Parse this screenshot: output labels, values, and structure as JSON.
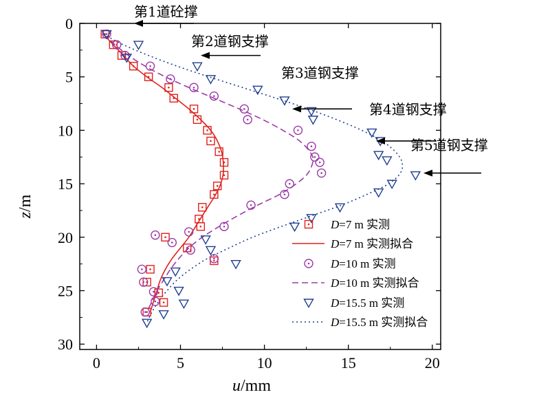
{
  "chart_data": {
    "type": "scatter",
    "title": "",
    "xlabel": {
      "var": "u",
      "unit": "/mm"
    },
    "ylabel": {
      "var": "z",
      "unit": "/m"
    },
    "xlim": [
      -1,
      20.5
    ],
    "ylim": [
      30.5,
      0
    ],
    "x_ticks": [
      0,
      5,
      10,
      15,
      20
    ],
    "y_ticks": [
      0,
      5,
      10,
      15,
      20,
      25,
      30
    ],
    "grid": false,
    "legend_position": "bottom-right",
    "series": [
      {
        "name": "D=7 m 实测",
        "kind": "measured",
        "marker": "square",
        "color": "#e0201b",
        "points": [
          [
            0.5,
            1
          ],
          [
            1,
            2
          ],
          [
            1.5,
            3
          ],
          [
            2.2,
            4
          ],
          [
            3.1,
            5
          ],
          [
            4.3,
            6
          ],
          [
            4.6,
            7
          ],
          [
            5.8,
            8
          ],
          [
            6,
            9
          ],
          [
            6.6,
            10
          ],
          [
            6.8,
            11
          ],
          [
            7.3,
            12
          ],
          [
            7.6,
            13
          ],
          [
            7.6,
            14.2
          ],
          [
            7.2,
            15.2
          ],
          [
            7,
            16
          ],
          [
            6.3,
            17.2
          ],
          [
            6.1,
            18.3
          ],
          [
            6.2,
            19
          ],
          [
            4.1,
            20
          ],
          [
            5.4,
            21
          ],
          [
            7,
            22.2
          ],
          [
            3.2,
            23
          ],
          [
            3,
            24.2
          ],
          [
            3.7,
            25.2
          ],
          [
            4,
            26.1
          ],
          [
            3,
            27
          ]
        ]
      },
      {
        "name": "D=7 m 实测拟合",
        "kind": "fit",
        "line": "solid",
        "color": "#e0201b",
        "points": [
          [
            0.4,
            1
          ],
          [
            1,
            2
          ],
          [
            1.6,
            3
          ],
          [
            2.2,
            4
          ],
          [
            3,
            5
          ],
          [
            3.9,
            6
          ],
          [
            4.7,
            7
          ],
          [
            5.5,
            8
          ],
          [
            6.2,
            9
          ],
          [
            6.8,
            10
          ],
          [
            7.2,
            11
          ],
          [
            7.45,
            12
          ],
          [
            7.55,
            13
          ],
          [
            7.55,
            14
          ],
          [
            7.4,
            15
          ],
          [
            7.1,
            16
          ],
          [
            6.7,
            17
          ],
          [
            6.3,
            18
          ],
          [
            5.9,
            19
          ],
          [
            5.5,
            20
          ],
          [
            5,
            21
          ],
          [
            4.5,
            22
          ],
          [
            4.1,
            23
          ],
          [
            3.8,
            24
          ],
          [
            3.6,
            25
          ],
          [
            3.4,
            26
          ],
          [
            3.2,
            27
          ]
        ]
      },
      {
        "name": "D=10 m 实测",
        "kind": "measured",
        "marker": "circle",
        "color": "#9b3aa6",
        "points": [
          [
            0.6,
            1
          ],
          [
            1.2,
            2
          ],
          [
            1.7,
            3
          ],
          [
            3.2,
            4
          ],
          [
            4.4,
            5.2
          ],
          [
            5.8,
            6
          ],
          [
            7,
            6.8
          ],
          [
            8.8,
            8
          ],
          [
            9,
            9
          ],
          [
            12,
            10
          ],
          [
            12.8,
            11.5
          ],
          [
            13,
            12.5
          ],
          [
            13.3,
            13
          ],
          [
            13.4,
            14
          ],
          [
            11.5,
            15
          ],
          [
            11.2,
            16
          ],
          [
            9.2,
            17
          ],
          [
            7.6,
            19
          ],
          [
            5.5,
            19.5
          ],
          [
            3.5,
            19.8
          ],
          [
            4.5,
            20.5
          ],
          [
            5.6,
            21.2
          ],
          [
            7,
            22
          ],
          [
            2.7,
            23
          ],
          [
            2.8,
            24.2
          ],
          [
            3.4,
            25.1
          ],
          [
            3.5,
            26
          ],
          [
            2.9,
            27
          ]
        ]
      },
      {
        "name": "D=10 m 实测拟合",
        "kind": "fit",
        "line": "dashed",
        "color": "#9b3aa6",
        "points": [
          [
            0.4,
            1
          ],
          [
            1.1,
            2
          ],
          [
            1.9,
            3
          ],
          [
            2.9,
            4
          ],
          [
            4.1,
            5
          ],
          [
            5.5,
            6
          ],
          [
            7,
            7
          ],
          [
            8.5,
            8
          ],
          [
            9.9,
            9
          ],
          [
            11.1,
            10
          ],
          [
            12.1,
            11
          ],
          [
            12.7,
            12
          ],
          [
            12.9,
            12.8
          ],
          [
            12.6,
            14
          ],
          [
            11.9,
            15
          ],
          [
            10.9,
            16
          ],
          [
            9.6,
            17
          ],
          [
            8.4,
            18
          ],
          [
            7.3,
            19
          ],
          [
            6.3,
            20
          ],
          [
            5.5,
            21
          ],
          [
            4.9,
            22
          ],
          [
            4.4,
            23
          ],
          [
            4,
            24
          ],
          [
            3.6,
            25
          ],
          [
            3.3,
            26
          ],
          [
            3,
            27
          ]
        ]
      },
      {
        "name": "D=15.5 m 实测",
        "kind": "measured",
        "marker": "triangle-down",
        "color": "#1f3f8f",
        "points": [
          [
            0.6,
            1
          ],
          [
            2.5,
            2
          ],
          [
            1.8,
            3.2
          ],
          [
            6,
            4
          ],
          [
            6.8,
            5.2
          ],
          [
            9.6,
            6.2
          ],
          [
            11.2,
            7.2
          ],
          [
            12.8,
            8.2
          ],
          [
            12.9,
            9
          ],
          [
            16.4,
            10.2
          ],
          [
            16.9,
            11
          ],
          [
            16.8,
            12.3
          ],
          [
            17.3,
            12.8
          ],
          [
            19,
            14.2
          ],
          [
            17.6,
            15
          ],
          [
            16.8,
            15.8
          ],
          [
            14.5,
            17.2
          ],
          [
            12.8,
            18.2
          ],
          [
            11.8,
            19
          ],
          [
            6.5,
            20.2
          ],
          [
            6.8,
            21.2
          ],
          [
            8.3,
            22.5
          ],
          [
            4.7,
            23.2
          ],
          [
            4.2,
            24.1
          ],
          [
            4.9,
            25
          ],
          [
            5.2,
            26.2
          ],
          [
            4,
            27.2
          ],
          [
            3,
            28
          ]
        ]
      },
      {
        "name": "D=15.5 m 实测拟合",
        "kind": "fit",
        "line": "dotted",
        "color": "#1f3f8f",
        "points": [
          [
            0.4,
            1
          ],
          [
            1.6,
            2
          ],
          [
            3.1,
            3
          ],
          [
            4.8,
            4
          ],
          [
            6.7,
            5
          ],
          [
            8.7,
            6
          ],
          [
            10.7,
            7
          ],
          [
            12.6,
            8
          ],
          [
            14.3,
            9
          ],
          [
            15.8,
            10
          ],
          [
            17,
            11
          ],
          [
            17.8,
            12
          ],
          [
            18.2,
            13
          ],
          [
            18.1,
            14
          ],
          [
            17.4,
            15
          ],
          [
            16.1,
            16
          ],
          [
            14.6,
            17
          ],
          [
            12.8,
            18
          ],
          [
            11,
            19
          ],
          [
            9.3,
            20
          ],
          [
            7.9,
            21
          ],
          [
            6.6,
            22
          ],
          [
            5.6,
            23
          ],
          [
            4.8,
            24
          ],
          [
            4.2,
            25
          ],
          [
            3.7,
            26
          ],
          [
            3.3,
            27
          ],
          [
            3,
            28
          ]
        ]
      }
    ],
    "annotations": [
      {
        "label": "第1道砼撑",
        "depth": 0
      },
      {
        "label": "第2道钢支撑",
        "depth": 3
      },
      {
        "label": "第3道钢支撑",
        "depth": 8
      },
      {
        "label": "第4道钢支撑",
        "depth": 11
      },
      {
        "label": "第5道钢支撑",
        "depth": 14
      }
    ]
  }
}
